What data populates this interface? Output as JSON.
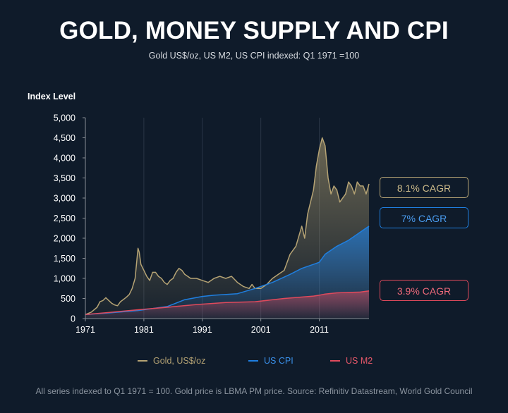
{
  "title": "GOLD, MONEY SUPPLY AND CPI",
  "subtitle": "Gold US$/oz, US M2, US CPI indexed: Q1 1971 =100",
  "footer": "All series indexed to Q1 1971 = 100. Gold price is LBMA PM price. Source: Refinitiv Datastream, World Gold Council",
  "colors": {
    "background": "#0f1b2a",
    "gold": "#b5a374",
    "cpi": "#1f7fe0",
    "m2": "#e04a5c",
    "axis": "#8a8f96"
  },
  "cagr_labels": {
    "gold": "8.1% CAGR",
    "cpi": "7% CAGR",
    "m2": "3.9% CAGR"
  },
  "chart_data": {
    "type": "area",
    "title": "GOLD, MONEY SUPPLY AND CPI",
    "subtitle": "Gold US$/oz, US M2, US CPI indexed: Q1 1971 =100",
    "xlabel": "",
    "ylabel": "Index Level",
    "xlim": [
      1971,
      2019.5
    ],
    "ylim": [
      0,
      5000
    ],
    "y_ticks": [
      0,
      500,
      1000,
      1500,
      2000,
      2500,
      3000,
      3500,
      4000,
      4500,
      5000
    ],
    "y_tick_labels": [
      "0",
      "500",
      "1,000",
      "1,500",
      "2,000",
      "2,500",
      "3,000",
      "3,500",
      "4,000",
      "4,500",
      "5,000"
    ],
    "x_ticks": [
      1971,
      1981,
      1991,
      2001,
      2011
    ],
    "x_tick_labels": [
      "1971",
      "1981",
      "1991",
      "2001",
      "2011"
    ],
    "grid": "vertical",
    "legend_position": "bottom",
    "series": [
      {
        "name": "Gold, US$/oz",
        "color": "#b5a374",
        "x": [
          1971,
          1972,
          1973,
          1973.5,
          1974,
          1974.5,
          1975,
          1975.5,
          1976,
          1976.5,
          1977,
          1978,
          1978.5,
          1979,
          1979.5,
          1980,
          1980.2,
          1980.5,
          1981,
          1981.5,
          1982,
          1982.5,
          1983,
          1983.5,
          1984,
          1984.5,
          1985,
          1985.5,
          1986,
          1986.5,
          1987,
          1987.5,
          1988,
          1988.5,
          1989,
          1990,
          1991,
          1992,
          1993,
          1994,
          1995,
          1996,
          1997,
          1998,
          1999,
          1999.5,
          2000,
          2001,
          2002,
          2003,
          2004,
          2005,
          2006,
          2007,
          2008,
          2008.5,
          2009,
          2010,
          2010.5,
          2011,
          2011.5,
          2012,
          2012.5,
          2013,
          2013.5,
          2014,
          2014.5,
          2015,
          2015.5,
          2016,
          2016.5,
          2017,
          2017.5,
          2018,
          2018.5,
          2019,
          2019.5
        ],
        "values": [
          100,
          160,
          280,
          420,
          450,
          520,
          450,
          380,
          340,
          320,
          420,
          530,
          600,
          750,
          1000,
          1750,
          1650,
          1350,
          1200,
          1050,
          950,
          1150,
          1150,
          1050,
          1000,
          900,
          850,
          950,
          1000,
          1150,
          1250,
          1200,
          1100,
          1050,
          1000,
          1000,
          950,
          900,
          1000,
          1050,
          1000,
          1050,
          900,
          800,
          750,
          850,
          750,
          750,
          850,
          1000,
          1100,
          1200,
          1600,
          1800,
          2300,
          2000,
          2600,
          3200,
          3800,
          4200,
          4500,
          4300,
          3500,
          3100,
          3300,
          3200,
          2900,
          3000,
          3100,
          3400,
          3300,
          3100,
          3400,
          3300,
          3300,
          3100,
          3350
        ]
      },
      {
        "name": "US CPI",
        "color": "#1f7fe0",
        "x": [
          1971,
          1975,
          1980,
          1985,
          1988,
          1991,
          1993,
          1997,
          2000,
          2003,
          2006,
          2008,
          2010,
          2011,
          2012,
          2014,
          2016,
          2018,
          2019.5
        ],
        "values": [
          100,
          140,
          200,
          300,
          470,
          550,
          580,
          620,
          750,
          900,
          1100,
          1250,
          1350,
          1400,
          1600,
          1800,
          1950,
          2150,
          2300
        ]
      },
      {
        "name": "US M2",
        "color": "#e04a5c",
        "x": [
          1971,
          1975,
          1980,
          1985,
          1990,
          1995,
          2000,
          2005,
          2010,
          2011,
          2012,
          2014,
          2016,
          2018,
          2019.5
        ],
        "values": [
          100,
          150,
          220,
          280,
          350,
          400,
          420,
          500,
          560,
          580,
          610,
          640,
          650,
          660,
          690
        ]
      }
    ]
  },
  "legend": {
    "gold": "Gold, US$/oz",
    "cpi": "US CPI",
    "m2": "US M2"
  }
}
